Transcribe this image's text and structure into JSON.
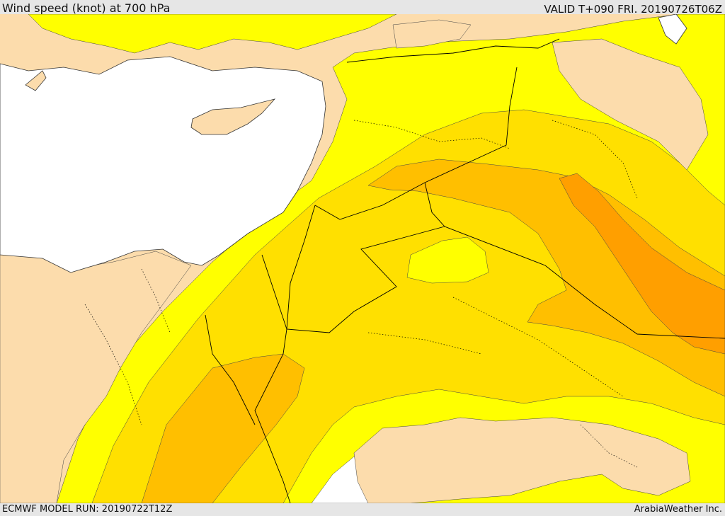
{
  "header": {
    "title": "Wind speed (knot) at 700 hPa",
    "valid": "VALID T+090 FRI. 20190726T06Z"
  },
  "footer": {
    "model_run": "ECMWF MODEL RUN: 20190722T12Z",
    "credit": "ArabiaWeather Inc."
  },
  "map": {
    "colors": {
      "land": "#fcdcac",
      "sea": "#ffffff",
      "band1": "#ffff00",
      "band2": "#ffe000",
      "band3": "#ffbf00",
      "band4": "#ff9f00",
      "border": "#000000"
    }
  }
}
